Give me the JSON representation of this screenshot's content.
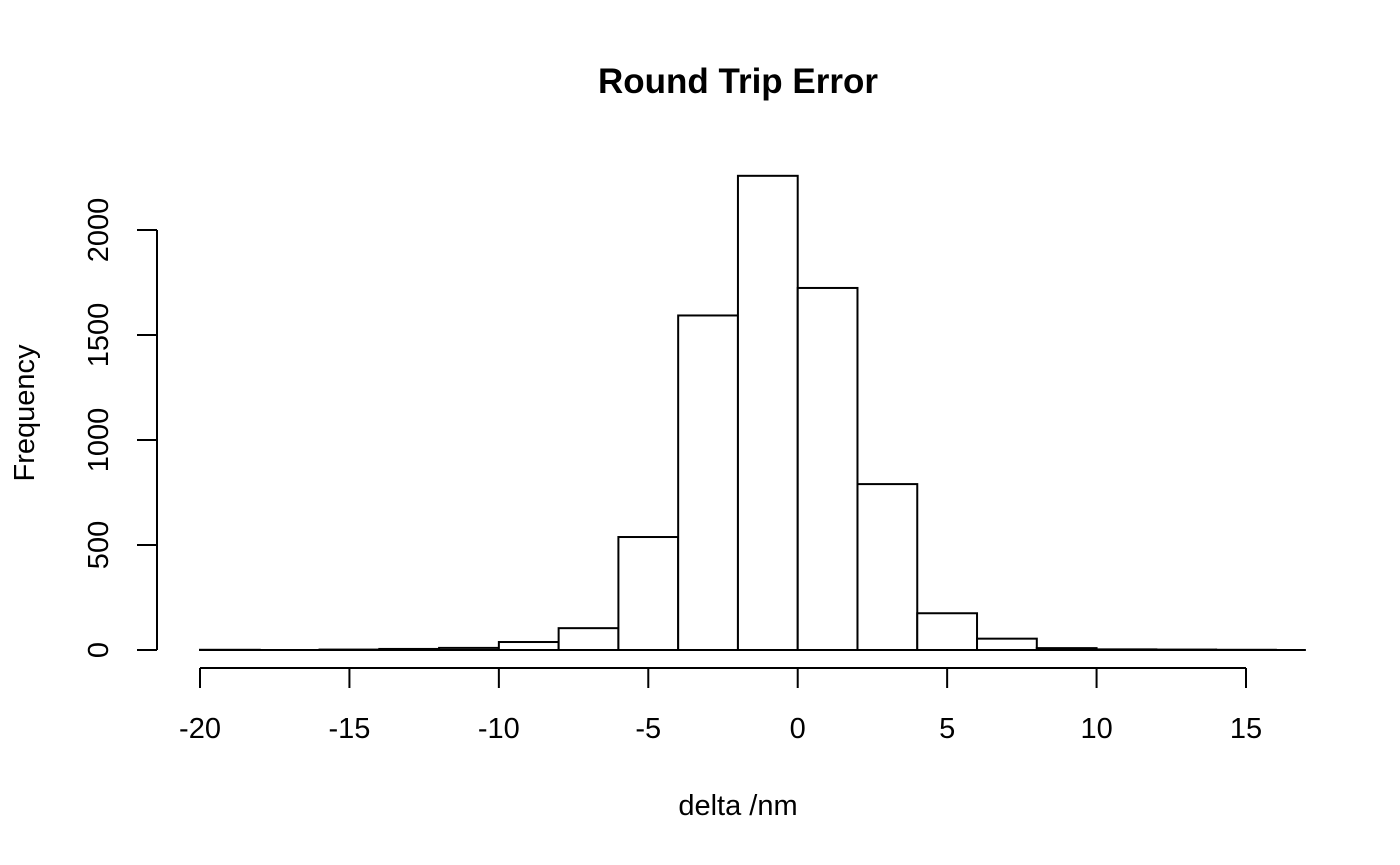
{
  "chart_data": {
    "type": "histogram",
    "title": "Round Trip Error",
    "xlabel": "delta /nm",
    "ylabel": "Frequency",
    "xlim": [
      -20,
      16
    ],
    "ylim": [
      0,
      2260
    ],
    "x_ticks": [
      -20,
      -15,
      -10,
      -5,
      0,
      5,
      10,
      15
    ],
    "y_ticks": [
      0,
      500,
      1000,
      1500,
      2000
    ],
    "bin_edges": [
      -20,
      -18,
      -16,
      -14,
      -12,
      -10,
      -8,
      -6,
      -4,
      -2,
      0,
      2,
      4,
      6,
      8,
      10,
      12,
      14,
      16
    ],
    "values": [
      1,
      0,
      2,
      5,
      10,
      38,
      104,
      538,
      1593,
      2258,
      1724,
      790,
      175,
      54,
      9,
      3,
      2,
      1
    ],
    "grid": false,
    "bar_fill": "#ffffff",
    "bar_stroke": "#000000"
  }
}
